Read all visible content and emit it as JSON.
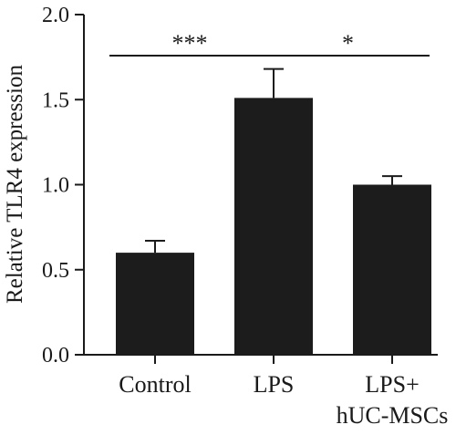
{
  "chart_data": {
    "type": "bar",
    "categories": [
      [
        "Control"
      ],
      [
        "LPS"
      ],
      [
        "LPS+",
        "hUC-MSCs"
      ]
    ],
    "values": [
      0.6,
      1.51,
      1.0
    ],
    "errors": [
      0.07,
      0.17,
      0.05
    ],
    "title": "",
    "xlabel": "",
    "ylabel": "Relative TLR4 expression",
    "ylim": [
      0,
      2.0
    ],
    "yticks": [
      "0.0",
      "0.5",
      "1.0",
      "1.5",
      "2.0"
    ],
    "ytick_values": [
      0,
      0.5,
      1.0,
      1.5,
      2.0
    ],
    "grid": false,
    "significance": [
      {
        "from": 0,
        "to": 1,
        "label": "***"
      },
      {
        "from": 1,
        "to": 2,
        "label": "*"
      }
    ],
    "colors": {
      "bar": "#1c1c1c",
      "axis": "#1a1a1a"
    }
  }
}
